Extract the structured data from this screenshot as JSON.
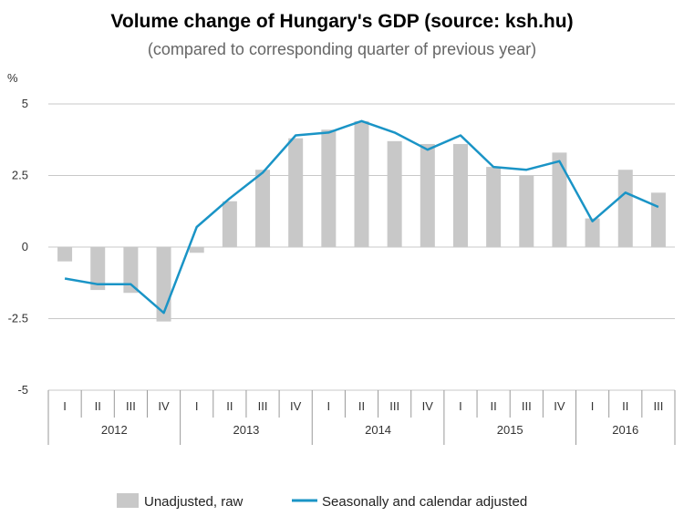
{
  "chart_data": {
    "type": "bar+line",
    "title": "Volume change of Hungary's GDP (source: ksh.hu)",
    "subtitle": "(compared to corresponding quarter of previous year)",
    "ylabel": "%",
    "ylim": [
      -5,
      5
    ],
    "yticks": [
      5,
      2.5,
      0,
      -2.5,
      -5
    ],
    "ytick_labels": [
      "5",
      "2.5",
      "0",
      "-2.5",
      "-5"
    ],
    "grid": true,
    "legend_position": "bottom",
    "quarters": [
      "I",
      "II",
      "III",
      "IV",
      "I",
      "II",
      "III",
      "IV",
      "I",
      "II",
      "III",
      "IV",
      "I",
      "II",
      "III",
      "IV",
      "I",
      "II",
      "III"
    ],
    "years": [
      {
        "label": "2012",
        "count": 4
      },
      {
        "label": "2013",
        "count": 4
      },
      {
        "label": "2014",
        "count": 4
      },
      {
        "label": "2015",
        "count": 4
      },
      {
        "label": "2016",
        "count": 3
      }
    ],
    "series": [
      {
        "name": "Unadjusted, raw",
        "kind": "bar",
        "color": "#c8c8c8",
        "values": [
          -0.5,
          -1.5,
          -1.6,
          -2.6,
          -0.2,
          1.6,
          2.7,
          3.8,
          4.1,
          4.4,
          3.7,
          3.6,
          3.6,
          2.8,
          2.5,
          3.3,
          1.0,
          2.7,
          1.9
        ]
      },
      {
        "name": "Seasonally and calendar adjusted",
        "kind": "line",
        "color": "#1a94c6",
        "values": [
          -1.1,
          -1.3,
          -1.3,
          -2.3,
          0.7,
          1.7,
          2.6,
          3.9,
          4.0,
          4.4,
          4.0,
          3.4,
          3.9,
          2.8,
          2.7,
          3.0,
          0.9,
          1.9,
          1.4
        ]
      }
    ]
  }
}
